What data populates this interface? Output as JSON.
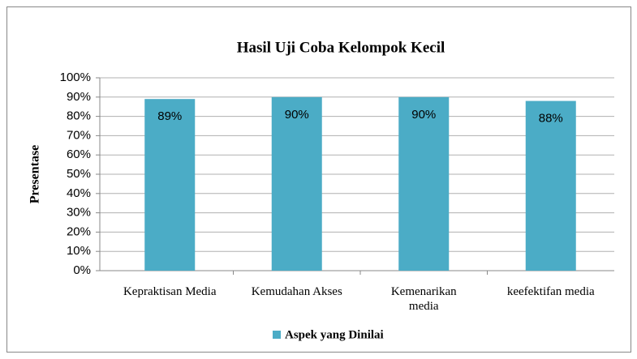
{
  "chart_data": {
    "type": "bar",
    "title": "Hasil Uji Coba Kelompok Kecil",
    "ylabel": "Presentase",
    "categories": [
      "Kepraktisan Media",
      "Kemudahan Akses",
      "Kemenarikan media",
      "keefektifan media"
    ],
    "series": [
      {
        "name": "Aspek yang Dinilai",
        "color": "#4bacc6",
        "values": [
          89,
          90,
          90,
          88
        ],
        "value_labels": [
          "89%",
          "90%",
          "90%",
          "88%"
        ]
      }
    ],
    "ylim": [
      0,
      100
    ],
    "yticks": [
      {
        "value": 0,
        "label": "0%"
      },
      {
        "value": 10,
        "label": "10%"
      },
      {
        "value": 20,
        "label": "20%"
      },
      {
        "value": 30,
        "label": "30%"
      },
      {
        "value": 40,
        "label": "40%"
      },
      {
        "value": 50,
        "label": "50%"
      },
      {
        "value": 60,
        "label": "60%"
      },
      {
        "value": 70,
        "label": "70%"
      },
      {
        "value": 80,
        "label": "80%"
      },
      {
        "value": 90,
        "label": "90%"
      },
      {
        "value": 100,
        "label": "100%"
      }
    ],
    "grid": true,
    "legend": "bottom"
  }
}
